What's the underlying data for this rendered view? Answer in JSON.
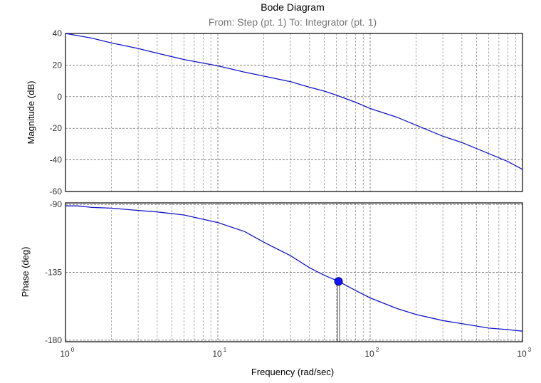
{
  "chart_data": {
    "type": "line",
    "title": "Bode Diagram",
    "subtitle": "From: Step (pt. 1)  To: Integrator (pt. 1)",
    "xlabel": "Frequency  (rad/sec)",
    "xscale": "log",
    "xlim": [
      1,
      1000
    ],
    "x_ticks": [
      {
        "base": "10",
        "exp": "0"
      },
      {
        "base": "10",
        "exp": "1"
      },
      {
        "base": "10",
        "exp": "2"
      },
      {
        "base": "10",
        "exp": "3"
      }
    ],
    "grid": true,
    "panels": [
      {
        "name": "magnitude",
        "ylabel": "Magnitude (dB)",
        "ylim": [
          -60,
          40
        ],
        "y_ticks": [
          "40",
          "20",
          "0",
          "-20",
          "-40",
          "-60"
        ],
        "series": [
          {
            "x": [
              1,
              1.5,
              2,
              3,
              4,
              6,
              10,
              15,
              20,
              30,
              40,
              50,
              60,
              80,
              100,
              150,
              200,
              300,
              400,
              600,
              800,
              1000
            ],
            "values": [
              40,
              37,
              34,
              30.5,
              27.5,
              23.5,
              19.5,
              15.5,
              13,
              9.5,
              6,
              3.5,
              1,
              -3.5,
              -7.5,
              -13,
              -18,
              -25,
              -29,
              -36,
              -41,
              -46
            ]
          }
        ]
      },
      {
        "name": "phase",
        "ylabel": "Phase (deg)",
        "ylim": [
          -181,
          -89
        ],
        "y_ticks": [
          "-90",
          "-135",
          "-180"
        ],
        "series": [
          {
            "x": [
              1,
              1.2,
              1.5,
              2,
              3,
              4,
              6,
              10,
              15,
              20,
              30,
              40,
              50,
              62,
              80,
              100,
              150,
              200,
              300,
              400,
              600,
              800,
              1000
            ],
            "values": [
              -91,
              -91,
              -92,
              -92.5,
              -94,
              -95,
              -97,
              -102,
              -108,
              -115,
              -124,
              -132,
              -137,
              -141,
              -147,
              -152,
              -159,
              -163,
              -167,
              -169,
              -172,
              -173,
              -174
            ]
          }
        ],
        "marker": {
          "x": 62,
          "y": -141
        }
      }
    ]
  }
}
